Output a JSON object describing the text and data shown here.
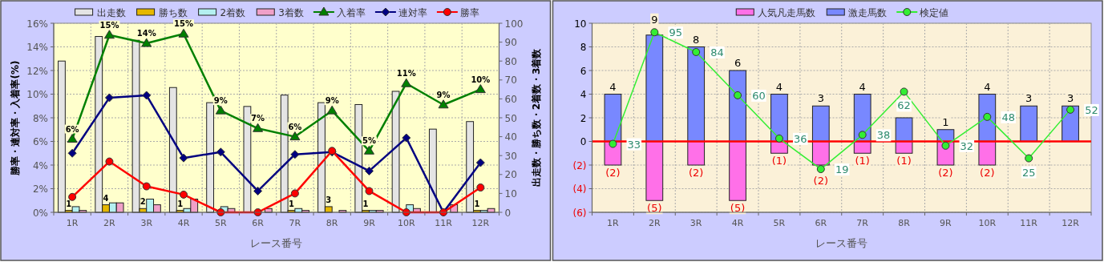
{
  "chart_data": [
    {
      "type": "bar",
      "xlabel": "レース番号",
      "ylabel": "勝率・連対率・入着率(%)",
      "y2label": "出走数・勝ち数・2着数・3着数",
      "categories": [
        "1R",
        "2R",
        "3R",
        "4R",
        "5R",
        "6R",
        "7R",
        "8R",
        "9R",
        "10R",
        "11R",
        "12R"
      ],
      "ylim": [
        0,
        16
      ],
      "yticks": [
        {
          "value": 0,
          "label": "0%"
        },
        {
          "value": 2,
          "label": "2%"
        },
        {
          "value": 4,
          "label": "4%"
        },
        {
          "value": 6,
          "label": "6%"
        },
        {
          "value": 8,
          "label": "8%"
        },
        {
          "value": 10,
          "label": "10%"
        },
        {
          "value": 12,
          "label": "12%"
        },
        {
          "value": 14,
          "label": "14%"
        },
        {
          "value": 16,
          "label": "16%"
        }
      ],
      "y2lim": [
        0,
        100
      ],
      "y2ticks": [
        0,
        10,
        20,
        30,
        40,
        50,
        60,
        70,
        80,
        90,
        100
      ],
      "grid": true,
      "legend": "top",
      "series": [
        {
          "name": "出走数",
          "color": "#e4e4e4",
          "axis": "y2",
          "values": [
            80,
            93,
            91,
            66,
            58,
            56,
            62,
            58,
            57,
            64,
            44,
            48
          ]
        },
        {
          "name": "勝ち数",
          "color": "#e6b800",
          "axis": "y2",
          "values": [
            1,
            4,
            2,
            1,
            0,
            0,
            1,
            3,
            1,
            0,
            0,
            1
          ],
          "value_labels": [
            "1",
            "4",
            "2",
            "1",
            null,
            null,
            "1",
            "3",
            "1",
            null,
            null,
            "1"
          ]
        },
        {
          "name": "2着数",
          "color": "#b4f0f0",
          "axis": "y2",
          "values": [
            3,
            5,
            7,
            2,
            3,
            null,
            2,
            0,
            1,
            4,
            0,
            1
          ]
        },
        {
          "name": "3着数",
          "color": "#f0a0c8",
          "axis": "y2",
          "values": [
            1,
            5,
            4,
            7,
            2,
            2,
            1,
            1,
            1,
            2,
            4,
            2
          ]
        },
        {
          "name": "入着率",
          "type": "line",
          "color": "#008000",
          "marker": "triangle",
          "values": [
            6.2,
            15.0,
            14.3,
            15.1,
            8.6,
            7.1,
            6.4,
            8.6,
            5.2,
            10.9,
            9.1,
            10.4
          ],
          "value_labels": [
            "6%",
            "15%",
            "14%",
            "15%",
            "9%",
            "7%",
            "6%",
            "9%",
            "5%",
            "11%",
            "9%",
            "10%"
          ]
        },
        {
          "name": "連対率",
          "type": "line",
          "color": "#000080",
          "marker": "diamond",
          "values": [
            5.0,
            9.7,
            9.9,
            4.6,
            5.1,
            1.8,
            4.9,
            5.1,
            3.5,
            6.3,
            0,
            4.2
          ]
        },
        {
          "name": "勝率",
          "type": "line",
          "color": "#ff0000",
          "marker": "circle",
          "values": [
            1.3,
            4.3,
            2.2,
            1.5,
            0,
            0,
            1.6,
            5.2,
            1.8,
            0,
            0,
            2.1
          ]
        }
      ]
    },
    {
      "type": "bar",
      "stacked": true,
      "xlabel": "レース番号",
      "categories": [
        "1R",
        "2R",
        "3R",
        "4R",
        "5R",
        "6R",
        "7R",
        "8R",
        "9R",
        "10R",
        "11R",
        "12R"
      ],
      "ylim": [
        -6,
        10
      ],
      "yticks": [
        {
          "value": -6,
          "label": "(6)"
        },
        {
          "value": -4,
          "label": "(4)"
        },
        {
          "value": -2,
          "label": "(2)"
        },
        0,
        2,
        4,
        6,
        8,
        10
      ],
      "y2lim": [
        -5,
        100
      ],
      "grid": true,
      "legend": "top",
      "ref_lines": [
        {
          "axis": "y",
          "value": 0,
          "color": "#ff0000"
        }
      ],
      "series": [
        {
          "name": "人気凡走馬数",
          "color": "#ff70e8",
          "values": [
            -2,
            -5,
            -2,
            -5,
            -1,
            -2,
            -1,
            -1,
            -2,
            -2,
            0,
            0
          ],
          "value_labels": [
            "(2)",
            "(5)",
            "(2)",
            "(5)",
            "(1)",
            "(2)",
            "(1)",
            "(1)",
            "(2)",
            "(2)",
            null,
            null
          ]
        },
        {
          "name": "激走馬数",
          "color": "#7888ff",
          "values": [
            4,
            9,
            8,
            6,
            4,
            3,
            4,
            2,
            1,
            4,
            3,
            3
          ],
          "value_labels": [
            "4",
            "9",
            "8",
            "6",
            "4",
            "3",
            "4",
            null,
            "1",
            "4",
            "3",
            "3"
          ]
        },
        {
          "name": "検定値",
          "type": "line",
          "axis": "y2",
          "color": "#33ee33",
          "marker": "circle",
          "values": [
            33,
            95,
            84,
            60,
            36,
            19,
            38,
            62,
            32,
            48,
            25,
            52
          ],
          "value_labels": [
            "33",
            "95",
            "84",
            "60",
            "36",
            "19",
            "38",
            "62",
            "32",
            "48",
            "25",
            "52"
          ]
        }
      ]
    }
  ]
}
